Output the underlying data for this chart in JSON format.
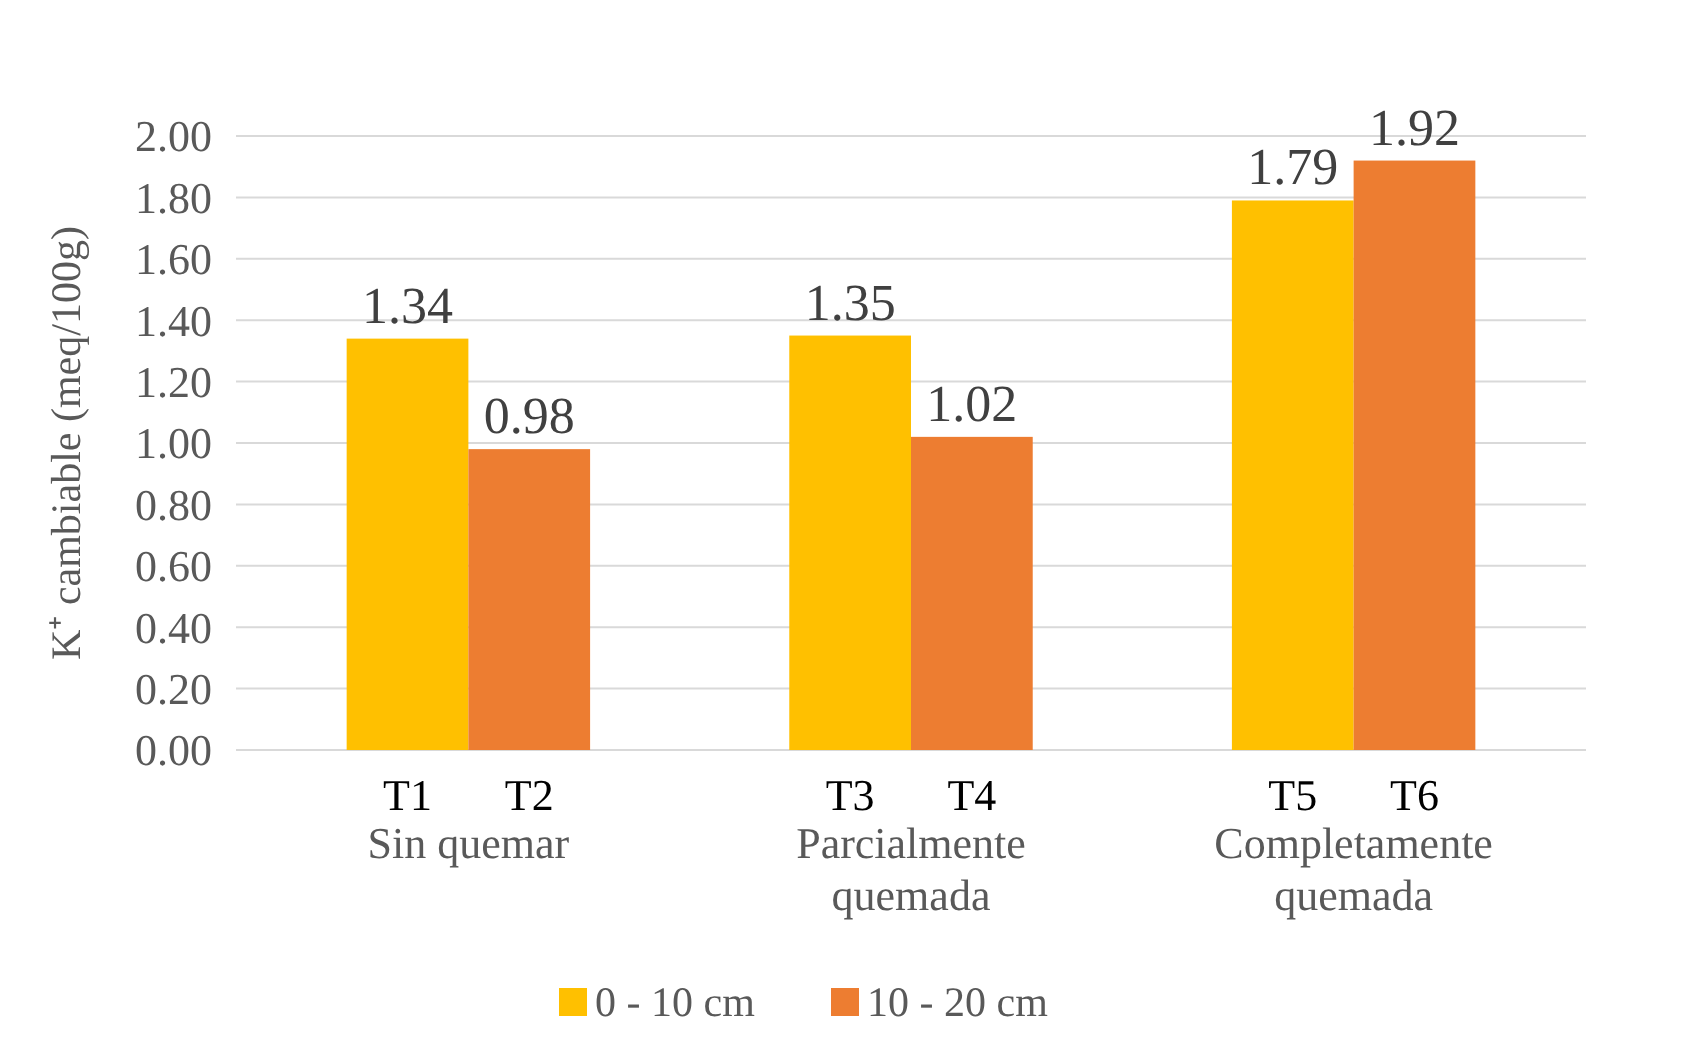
{
  "chart_data": {
    "type": "bar",
    "ylabel": "K⁺ cambiable (meq/100g)",
    "categories": [
      "Sin quemar",
      "Parcialmente quemada",
      "Completamente quemada"
    ],
    "series": [
      {
        "name": "0 - 10 cm",
        "color": "#ffc000",
        "values": [
          1.34,
          1.35,
          1.79
        ]
      },
      {
        "name": "10 - 20 cm",
        "color": "#ed7d31",
        "values": [
          0.98,
          1.02,
          1.92
        ]
      }
    ],
    "ylim": [
      0,
      2
    ],
    "yticks": [
      {
        "value": 0,
        "label": "0.00"
      },
      {
        "value": 0.2,
        "label": "0.20"
      },
      {
        "value": 0.4,
        "label": "0.40"
      },
      {
        "value": 0.6,
        "label": "0.60"
      },
      {
        "value": 0.8,
        "label": "0.80"
      },
      {
        "value": 1,
        "label": "1.00"
      },
      {
        "value": 1.2,
        "label": "1.20"
      },
      {
        "value": 1.4,
        "label": "1.40"
      },
      {
        "value": 1.6,
        "label": "1.60"
      },
      {
        "value": 1.8,
        "label": "1.80"
      },
      {
        "value": 2,
        "label": "2.00"
      }
    ],
    "grid": "y",
    "legend": "bottom",
    "data_labels": true,
    "annotations": [
      "T1",
      "T2",
      "T3",
      "T4",
      "T5",
      "T6"
    ]
  }
}
